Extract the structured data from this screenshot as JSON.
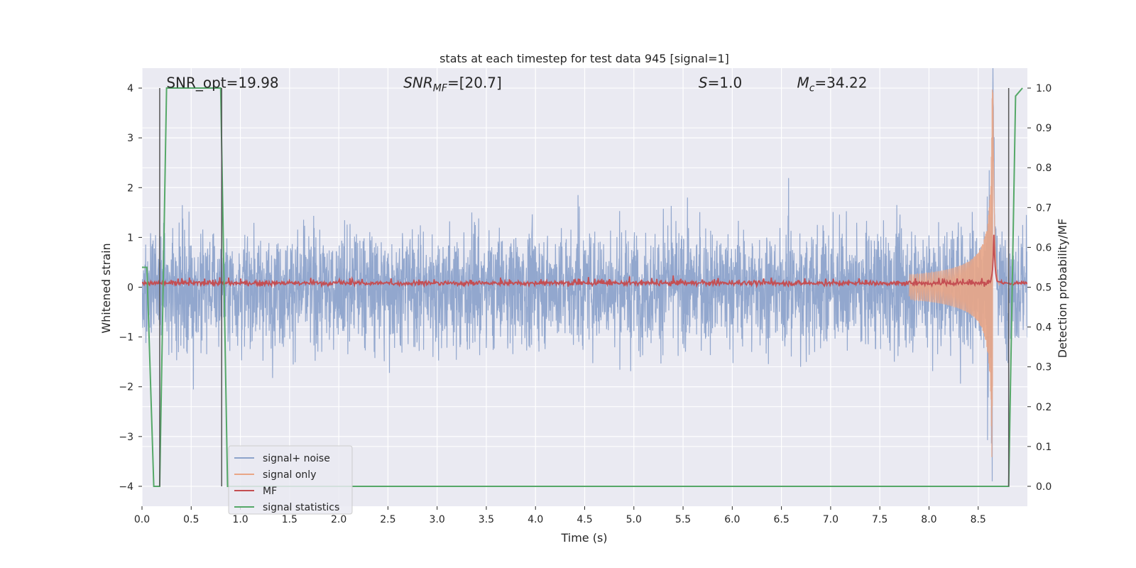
{
  "chart_data": {
    "type": "line",
    "title": "stats at each timestep for test data 945 [signal=1]",
    "xlabel": "Time (s)",
    "ylabel": "Whitened strain",
    "y2label": "Detection probability/MF",
    "xlim": [
      0.0,
      9.0
    ],
    "ylim": [
      -4.4,
      4.4
    ],
    "y2lim": [
      -0.05,
      1.05
    ],
    "x_ticks": [
      0.0,
      0.5,
      1.0,
      1.5,
      2.0,
      2.5,
      3.0,
      3.5,
      4.0,
      4.5,
      5.0,
      5.5,
      6.0,
      6.5,
      7.0,
      7.5,
      8.0,
      8.5
    ],
    "x_tick_labels": [
      "0.0",
      "0.5",
      "1.0",
      "1.5",
      "2.0",
      "2.5",
      "3.0",
      "3.5",
      "4.0",
      "4.5",
      "5.0",
      "5.5",
      "6.0",
      "6.5",
      "7.0",
      "7.5",
      "8.0",
      "8.5"
    ],
    "y_ticks": [
      4,
      3,
      2,
      1,
      0,
      -1,
      -2,
      -3,
      -4
    ],
    "y_tick_labels": [
      "4",
      "3",
      "2",
      "1",
      "0",
      "−1",
      "−2",
      "−3",
      "−4"
    ],
    "y2_ticks": [
      1.0,
      0.9,
      0.8,
      0.7,
      0.6,
      0.5,
      0.4,
      0.3,
      0.2,
      0.1,
      0.0
    ],
    "y2_tick_labels": [
      "1.0",
      "0.9",
      "0.8",
      "0.7",
      "0.6",
      "0.5",
      "0.4",
      "0.3",
      "0.2",
      "0.1",
      "0.0"
    ],
    "grid": true,
    "legend_position": "lower-left",
    "annotations": [
      {
        "text": "SNR_opt=19.98",
        "x": 0.19,
        "y": 4.05
      },
      {
        "text": "SNR_MF=[20.7]",
        "x": 2.6,
        "y": 4.05
      },
      {
        "text": "S=1.0",
        "x": 5.6,
        "y": 4.05
      },
      {
        "text": "M_c=34.22",
        "x": 6.6,
        "y": 4.05
      }
    ],
    "annotation_labels": [
      {
        "main": "SNR_opt=19.98",
        "sub": ""
      },
      {
        "main": "SNR",
        "sub": "MF",
        "rest": "=[20.7]",
        "italic": true
      },
      {
        "main": "S",
        "sub": "",
        "rest": "=1.0",
        "italic": true
      },
      {
        "main": "M",
        "sub": "c",
        "rest": "=34.22",
        "italic": true
      }
    ],
    "vlines": [
      0.18,
      0.81,
      8.81
    ],
    "series": [
      {
        "name": "signal+ noise",
        "color": "#8da3cb",
        "axis": "left",
        "kind": "noise",
        "amplitude": 0.85,
        "x_range": [
          0.0,
          9.0
        ]
      },
      {
        "name": "signal only",
        "color": "#e9a687",
        "axis": "left",
        "kind": "chirp",
        "merger_time": 8.65,
        "peak": 4.0,
        "x_range": [
          7.8,
          8.72
        ]
      },
      {
        "name": "MF",
        "color": "#c44e52",
        "axis": "right",
        "kind": "mf",
        "baseline": 0.51,
        "peak_time": 8.66,
        "peak": 0.63
      },
      {
        "name": "signal statistics",
        "color": "#55a868",
        "axis": "right",
        "kind": "stat",
        "x": [
          0.0,
          0.05,
          0.12,
          0.18,
          0.25,
          0.8,
          0.87,
          8.81,
          8.88,
          8.95
        ],
        "y": [
          0.55,
          0.55,
          0.0,
          0.0,
          1.0,
          1.0,
          0.0,
          0.0,
          0.98,
          1.0
        ]
      }
    ]
  }
}
